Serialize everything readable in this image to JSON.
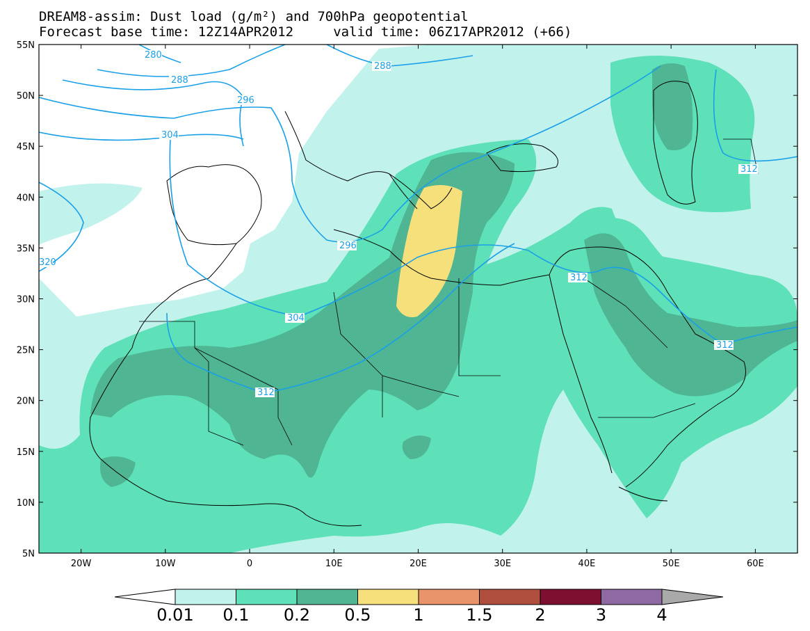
{
  "title": {
    "line1": "DREAM8-assim: Dust load (g/m²) and 700hPa geopotential",
    "line2": "Forecast base time: 12Z14APR2012     valid time: 06Z17APR2012 (+66)"
  },
  "map": {
    "lon_range": [
      -25,
      65
    ],
    "lat_range": [
      5,
      55
    ],
    "lat_labels": [
      "55N",
      "50N",
      "45N",
      "40N",
      "35N",
      "30N",
      "25N",
      "20N",
      "15N",
      "10N",
      "5N"
    ],
    "lon_labels": [
      "20W",
      "10W",
      "0",
      "10E",
      "20E",
      "30E",
      "40E",
      "50E",
      "60E"
    ],
    "contour_labels": [
      "280",
      "288",
      "288",
      "296",
      "304",
      "296",
      "304",
      "312",
      "312",
      "312",
      "312",
      "320"
    ]
  },
  "colorbar": {
    "labels": [
      "0.01",
      "0.1",
      "0.2",
      "0.5",
      "1",
      "1.5",
      "2",
      "3",
      "4"
    ],
    "colors": [
      "#ffffff",
      "#c2f2ec",
      "#5ee0b8",
      "#4fb593",
      "#f6e07c",
      "#e9936a",
      "#b04e3e",
      "#7d1030",
      "#8f6aa2",
      "#a9a9a9"
    ]
  },
  "colors": {
    "level_0_01": "#c2f2ec",
    "level_0_1": "#5ee0b8",
    "level_0_2": "#4fb593",
    "level_0_5": "#f6e07c",
    "contour": "#1aa0e8"
  }
}
